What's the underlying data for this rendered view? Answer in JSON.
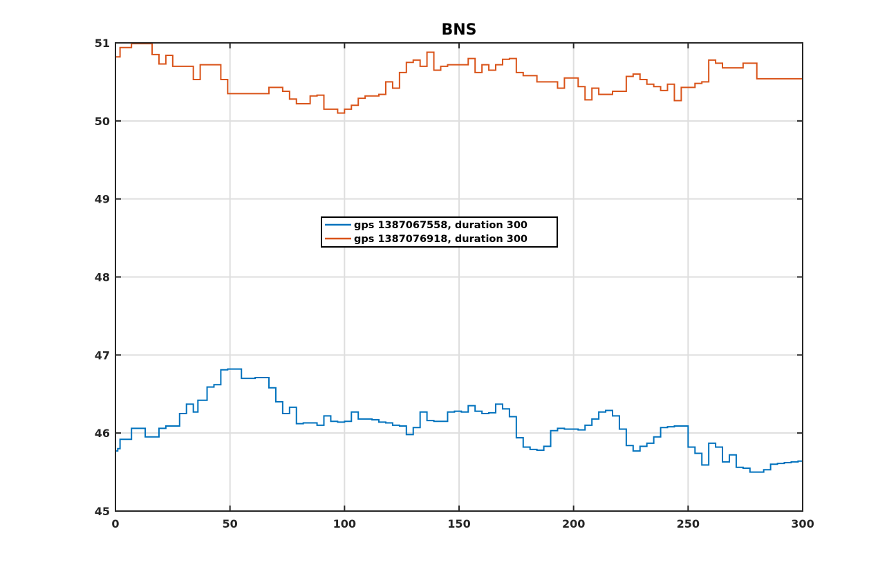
{
  "chart_data": {
    "type": "line",
    "title": "BNS",
    "xlabel": "",
    "ylabel": "",
    "xlim": [
      0,
      300
    ],
    "ylim": [
      45,
      51
    ],
    "xticks": [
      0,
      50,
      100,
      150,
      200,
      250,
      300
    ],
    "yticks": [
      45,
      46,
      47,
      48,
      49,
      50,
      51
    ],
    "grid": true,
    "legend_position": "center-left",
    "step": true,
    "series": [
      {
        "name": "gps 1387067558, duration 300",
        "color": "#0072BD",
        "x": [
          0,
          1,
          2,
          5,
          7,
          10,
          13,
          16,
          19,
          21,
          22,
          25,
          28,
          31,
          34,
          36,
          37,
          40,
          43,
          46,
          49,
          52,
          55,
          58,
          61,
          64,
          67,
          70,
          73,
          76,
          79,
          82,
          85,
          88,
          91,
          94,
          97,
          100,
          103,
          106,
          109,
          112,
          115,
          118,
          121,
          124,
          127,
          130,
          133,
          136,
          139,
          142,
          145,
          148,
          151,
          154,
          157,
          160,
          163,
          166,
          169,
          172,
          175,
          178,
          181,
          184,
          187,
          190,
          193,
          196,
          199,
          202,
          205,
          208,
          211,
          214,
          217,
          220,
          223,
          226,
          229,
          232,
          235,
          238,
          241,
          244,
          247,
          250,
          253,
          256,
          259,
          262,
          265,
          268,
          271,
          274,
          277,
          280,
          283,
          286,
          289,
          292,
          295,
          298,
          300
        ],
        "y": [
          45.77,
          45.8,
          45.92,
          45.92,
          46.06,
          46.06,
          45.95,
          45.95,
          46.06,
          46.06,
          46.09,
          46.09,
          46.25,
          46.37,
          46.27,
          46.42,
          46.42,
          46.59,
          46.62,
          46.81,
          46.82,
          46.82,
          46.7,
          46.7,
          46.71,
          46.71,
          46.58,
          46.4,
          46.25,
          46.33,
          46.12,
          46.13,
          46.13,
          46.1,
          46.22,
          46.15,
          46.14,
          46.15,
          46.27,
          46.18,
          46.18,
          46.17,
          46.14,
          46.13,
          46.1,
          46.09,
          45.98,
          46.07,
          46.27,
          46.16,
          46.15,
          46.15,
          46.27,
          46.28,
          46.27,
          46.35,
          46.28,
          46.25,
          46.26,
          46.37,
          46.31,
          46.21,
          45.94,
          45.82,
          45.79,
          45.78,
          45.83,
          46.03,
          46.06,
          46.05,
          46.05,
          46.04,
          46.1,
          46.18,
          46.27,
          46.29,
          46.22,
          46.05,
          45.84,
          45.77,
          45.83,
          45.87,
          45.95,
          46.07,
          46.08,
          46.09,
          46.09,
          45.82,
          45.74,
          45.59,
          45.87,
          45.82,
          45.63,
          45.72,
          45.56,
          45.55,
          45.5,
          45.5,
          45.53,
          45.6,
          45.61,
          45.62,
          45.63,
          45.64,
          45.64
        ]
      },
      {
        "name": "gps 1387076918, duration 300",
        "color": "#D95319",
        "x": [
          0,
          1,
          2,
          5,
          7,
          10,
          13,
          16,
          19,
          22,
          25,
          28,
          31,
          34,
          37,
          40,
          43,
          46,
          49,
          52,
          55,
          58,
          61,
          64,
          67,
          70,
          73,
          76,
          79,
          82,
          85,
          88,
          91,
          94,
          97,
          100,
          103,
          106,
          109,
          112,
          115,
          118,
          121,
          124,
          127,
          130,
          133,
          136,
          139,
          142,
          145,
          148,
          151,
          154,
          157,
          160,
          163,
          166,
          169,
          172,
          175,
          178,
          181,
          184,
          187,
          190,
          193,
          196,
          199,
          202,
          205,
          208,
          211,
          214,
          217,
          220,
          223,
          226,
          229,
          232,
          235,
          238,
          241,
          244,
          247,
          250,
          253,
          256,
          259,
          262,
          265,
          268,
          271,
          274,
          277,
          280,
          283,
          286,
          289,
          292,
          295,
          298,
          300
        ],
        "y": [
          50.82,
          50.82,
          50.94,
          50.94,
          50.99,
          50.99,
          50.99,
          50.85,
          50.73,
          50.84,
          50.7,
          50.7,
          50.7,
          50.53,
          50.72,
          50.72,
          50.72,
          50.53,
          50.35,
          50.35,
          50.35,
          50.35,
          50.35,
          50.35,
          50.43,
          50.43,
          50.38,
          50.28,
          50.22,
          50.22,
          50.32,
          50.33,
          50.15,
          50.15,
          50.1,
          50.15,
          50.2,
          50.29,
          50.32,
          50.32,
          50.34,
          50.5,
          50.42,
          50.62,
          50.75,
          50.78,
          50.7,
          50.88,
          50.65,
          50.7,
          50.72,
          50.72,
          50.72,
          50.8,
          50.62,
          50.72,
          50.65,
          50.72,
          50.79,
          50.8,
          50.62,
          50.58,
          50.58,
          50.5,
          50.5,
          50.5,
          50.42,
          50.55,
          50.55,
          50.44,
          50.27,
          50.42,
          50.34,
          50.34,
          50.38,
          50.38,
          50.57,
          50.6,
          50.53,
          50.47,
          50.44,
          50.39,
          50.47,
          50.26,
          50.43,
          50.43,
          50.48,
          50.5,
          50.78,
          50.74,
          50.68,
          50.68,
          50.68,
          50.74,
          50.74,
          50.54,
          50.54,
          50.54,
          50.54,
          50.54,
          50.54,
          50.54,
          50.54
        ]
      }
    ]
  }
}
